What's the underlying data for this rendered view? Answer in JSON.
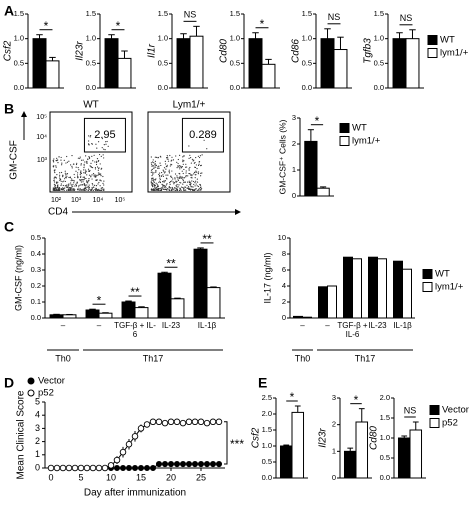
{
  "panel_labels": [
    "A",
    "B",
    "C",
    "D",
    "E"
  ],
  "flow": {
    "ylabel": "GM-CSF",
    "xlabel": "CD4",
    "yticks": [
      "10⁵",
      "10⁴",
      "10³"
    ],
    "xticks": [
      "10²",
      "10³",
      "10⁴",
      "10⁵"
    ],
    "plots": [
      {
        "title": "WT",
        "gate": 2.95
      },
      {
        "title": "Lym1/+",
        "gate": 0.289
      }
    ]
  },
  "chart_data": [
    {
      "type": "bar",
      "ylabel": "Csf2",
      "ylim": [
        0,
        1.5
      ],
      "yticks": [
        {
          "value": 0,
          "label": "0.0"
        },
        0.5,
        {
          "value": 1,
          "label": "1.0"
        },
        1.5
      ],
      "series": [
        {
          "color": "#000000",
          "values": [
            1.0
          ],
          "errors": [
            0.08
          ]
        },
        {
          "color": "#ffffff",
          "values": [
            0.55
          ],
          "errors": [
            0.07
          ]
        }
      ],
      "annotations": [
        "*"
      ]
    },
    {
      "type": "bar",
      "ylabel": "Il23r",
      "ylim": [
        0,
        1.5
      ],
      "yticks": [
        {
          "value": 0,
          "label": "0.0"
        },
        0.5,
        {
          "value": 1,
          "label": "1.0"
        },
        1.5
      ],
      "series": [
        {
          "color": "#000000",
          "values": [
            1.0
          ],
          "errors": [
            0.08
          ]
        },
        {
          "color": "#ffffff",
          "values": [
            0.6
          ],
          "errors": [
            0.15
          ]
        }
      ],
      "annotations": [
        "*"
      ]
    },
    {
      "type": "bar",
      "ylabel": "Il1r",
      "ylim": [
        0,
        1.5
      ],
      "yticks": [
        {
          "value": 0,
          "label": "0.0"
        },
        0.5,
        {
          "value": 1,
          "label": "1.0"
        },
        1.5
      ],
      "series": [
        {
          "color": "#000000",
          "values": [
            1.0
          ],
          "errors": [
            0.1
          ]
        },
        {
          "color": "#ffffff",
          "values": [
            1.05
          ],
          "errors": [
            0.2
          ]
        }
      ],
      "annotations": [
        "NS"
      ]
    },
    {
      "type": "bar",
      "ylabel": "Cd80",
      "ylim": [
        0,
        1.5
      ],
      "yticks": [
        {
          "value": 0,
          "label": "0.0"
        },
        0.5,
        {
          "value": 1,
          "label": "1.0"
        },
        1.5
      ],
      "series": [
        {
          "color": "#000000",
          "values": [
            1.0
          ],
          "errors": [
            0.12
          ]
        },
        {
          "color": "#ffffff",
          "values": [
            0.48
          ],
          "errors": [
            0.1
          ]
        }
      ],
      "annotations": [
        "*"
      ]
    },
    {
      "type": "bar",
      "ylabel": "Cd86",
      "ylim": [
        0,
        1.5
      ],
      "yticks": [
        {
          "value": 0,
          "label": "0.0"
        },
        0.5,
        {
          "value": 1,
          "label": "1.0"
        },
        1.5
      ],
      "series": [
        {
          "color": "#000000",
          "values": [
            1.0
          ],
          "errors": [
            0.2
          ]
        },
        {
          "color": "#ffffff",
          "values": [
            0.78
          ],
          "errors": [
            0.25
          ]
        }
      ],
      "annotations": [
        "NS"
      ]
    },
    {
      "type": "bar",
      "ylabel": "Tgfb3",
      "ylim": [
        0,
        1.5
      ],
      "yticks": [
        {
          "value": 0,
          "label": "0.0"
        },
        0.5,
        {
          "value": 1,
          "label": "1.0"
        },
        1.5
      ],
      "series": [
        {
          "name": "WT",
          "color": "#000000",
          "values": [
            1.0
          ],
          "errors": [
            0.12
          ]
        },
        {
          "name": "lym1/+",
          "color": "#ffffff",
          "values": [
            1.0
          ],
          "errors": [
            0.18
          ]
        }
      ],
      "annotations": [
        "NS"
      ]
    },
    {
      "type": "bar",
      "ylabel": "GM-CSF⁺ Cells (%)",
      "ylim": [
        0,
        3
      ],
      "yticks": [
        0,
        1,
        2,
        3
      ],
      "series": [
        {
          "name": "WT",
          "color": "#000000",
          "values": [
            2.1
          ],
          "errors": [
            0.45
          ]
        },
        {
          "name": "lym1/+",
          "color": "#ffffff",
          "values": [
            0.3
          ],
          "errors": [
            0.05
          ]
        }
      ],
      "annotations": [
        "*"
      ]
    },
    {
      "type": "bar",
      "ylabel": "GM-CSF (ng/ml)",
      "ylim": [
        0,
        0.5
      ],
      "yticks": [
        {
          "value": 0,
          "label": "0.0"
        },
        0.1,
        0.2,
        0.3,
        0.4,
        0.5
      ],
      "groups": [
        {
          "label": "Th0",
          "categories": [
            "–"
          ]
        },
        {
          "label": "Th17",
          "categories": [
            "–",
            "TGF-β + IL-6",
            "IL-23",
            "IL-1β"
          ]
        }
      ],
      "series": [
        {
          "color": "#000000",
          "values": [
            0.02,
            0.05,
            0.1,
            0.28,
            0.43
          ],
          "errors": [
            0.003,
            0.005,
            0.006,
            0.006,
            0.008
          ]
        },
        {
          "color": "#ffffff",
          "values": [
            0.02,
            0.03,
            0.065,
            0.12,
            0.19
          ],
          "errors": [
            0.002,
            0.003,
            0.005,
            0.004,
            0.004
          ]
        }
      ],
      "annotations": [
        null,
        "*",
        "**",
        "**",
        "**"
      ]
    },
    {
      "type": "bar",
      "ylabel": "IL-17 (ng/ml)",
      "ylim": [
        0,
        10
      ],
      "yticks": [
        0,
        2,
        4,
        6,
        8,
        10
      ],
      "groups": [
        {
          "label": "Th0",
          "categories": [
            "–"
          ]
        },
        {
          "label": "Th17",
          "categories": [
            "–",
            "TGF-β + IL-6",
            "IL-23",
            "IL-1β"
          ]
        }
      ],
      "series": [
        {
          "name": "WT",
          "color": "#000000",
          "values": [
            0.2,
            3.9,
            7.6,
            7.6,
            7.1
          ]
        },
        {
          "name": "lym1/+",
          "color": "#ffffff",
          "values": [
            0.1,
            4.0,
            7.4,
            7.4,
            6.1
          ]
        }
      ]
    },
    {
      "type": "line",
      "ylabel": "Mean Clinical Score",
      "xlabel": "Day after immunization",
      "xlim": [
        -1,
        29
      ],
      "ylim": [
        0,
        5
      ],
      "xticks": [
        0,
        5,
        10,
        15,
        20,
        25
      ],
      "yticks": [
        0,
        1,
        2,
        3,
        4,
        5
      ],
      "x": [
        0,
        1,
        2,
        3,
        4,
        5,
        6,
        7,
        8,
        9,
        10,
        11,
        12,
        13,
        14,
        15,
        16,
        17,
        18,
        19,
        20,
        21,
        22,
        23,
        24,
        25,
        26,
        27,
        28
      ],
      "series": [
        {
          "name": "Vector",
          "color": "#000000",
          "values": [
            0,
            0,
            0,
            0,
            0,
            0,
            0,
            0,
            0,
            0,
            0,
            0,
            0,
            0,
            0,
            0,
            0,
            0,
            0.3,
            0.3,
            0.3,
            0.3,
            0.3,
            0.3,
            0.3,
            0.3,
            0.3,
            0.3,
            0.3
          ]
        },
        {
          "name": "p52",
          "color": "#ffffff",
          "values": [
            0,
            0,
            0,
            0,
            0,
            0,
            0,
            0,
            0,
            0,
            0.2,
            0.6,
            1.2,
            1.8,
            2.4,
            3.0,
            3.3,
            3.5,
            3.5,
            3.4,
            3.5,
            3.5,
            3.4,
            3.5,
            3.5,
            3.5,
            3.4,
            3.5,
            3.5
          ],
          "errors": [
            0,
            0,
            0,
            0,
            0,
            0,
            0,
            0,
            0,
            0,
            0.1,
            0.3,
            0.4,
            0.4,
            0.4,
            0.3,
            0.2,
            0.2,
            0.2,
            0.2,
            0.2,
            0.2,
            0.2,
            0.2,
            0.2,
            0.2,
            0.2,
            0.2,
            0.2
          ]
        }
      ],
      "annotation": "***"
    },
    {
      "type": "bar",
      "ylabel": "Csf2",
      "ylim": [
        0,
        2.5
      ],
      "yticks": [
        {
          "value": 0,
          "label": "0.0"
        },
        0.5,
        {
          "value": 1,
          "label": "1.0"
        },
        1.5,
        {
          "value": 2,
          "label": "2.0"
        },
        2.5
      ],
      "series": [
        {
          "color": "#000000",
          "values": [
            1.0
          ],
          "errors": [
            0.03
          ]
        },
        {
          "color": "#ffffff",
          "values": [
            2.05
          ],
          "errors": [
            0.2
          ]
        }
      ],
      "annotations": [
        "*"
      ]
    },
    {
      "type": "bar",
      "ylabel": "Il23r",
      "ylim": [
        0,
        3
      ],
      "yticks": [
        0,
        1,
        2,
        3
      ],
      "series": [
        {
          "color": "#000000",
          "values": [
            1.0
          ],
          "errors": [
            0.12
          ]
        },
        {
          "color": "#ffffff",
          "values": [
            2.1
          ],
          "errors": [
            0.5
          ]
        }
      ],
      "annotations": [
        "*"
      ]
    },
    {
      "type": "bar",
      "ylabel": "Cd80",
      "ylim": [
        0,
        2
      ],
      "yticks": [
        {
          "value": 0,
          "label": "0.0"
        },
        0.5,
        {
          "value": 1,
          "label": "1.0"
        },
        1.5,
        {
          "value": 2,
          "label": "2.0"
        }
      ],
      "series": [
        {
          "name": "Vector",
          "color": "#000000",
          "values": [
            1.0
          ],
          "errors": [
            0.05
          ]
        },
        {
          "name": "p52",
          "color": "#ffffff",
          "values": [
            1.2
          ],
          "errors": [
            0.2
          ]
        }
      ],
      "annotations": [
        "NS"
      ]
    }
  ]
}
